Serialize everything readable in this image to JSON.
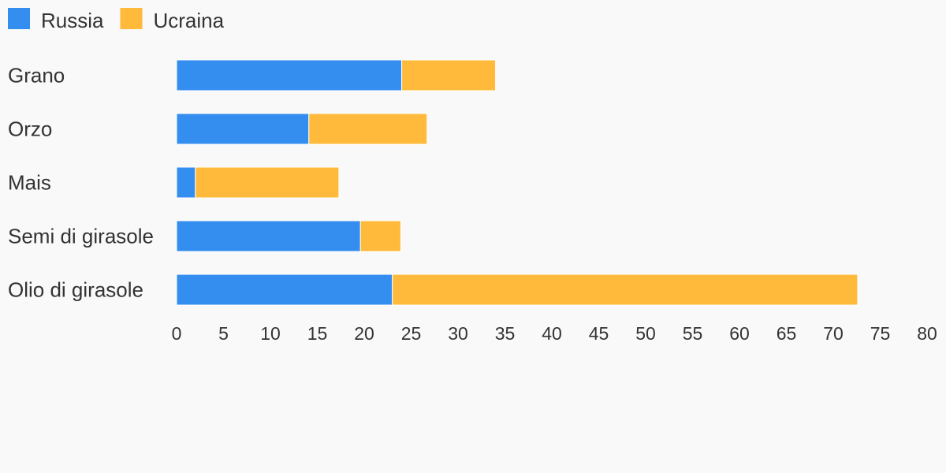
{
  "chart_data": {
    "type": "bar",
    "orientation": "horizontal",
    "stacked": true,
    "categories": [
      "Grano",
      "Orzo",
      "Mais",
      "Semi di girasole",
      "Olio di girasole"
    ],
    "series": [
      {
        "name": "Russia",
        "color": "#348ef0",
        "values": [
          24,
          14.1,
          2,
          19.6,
          23
        ]
      },
      {
        "name": "Ucraina",
        "color": "#ffba3b",
        "values": [
          10,
          12.6,
          15.3,
          4.3,
          49.6
        ]
      }
    ],
    "xlim": [
      0,
      80
    ],
    "x_ticks": [
      "0",
      "5",
      "10",
      "15",
      "20",
      "25",
      "30",
      "35",
      "40",
      "45",
      "50",
      "55",
      "60",
      "65",
      "70",
      "75",
      "80"
    ],
    "legend_position": "top-left",
    "grid": false
  }
}
